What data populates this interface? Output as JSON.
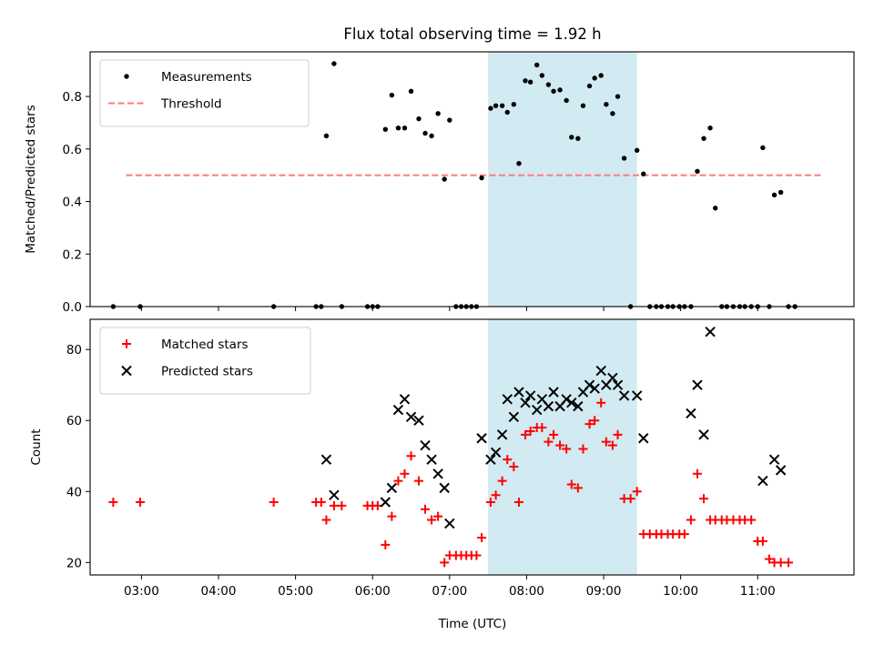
{
  "chart_data": {
    "title": "Flux total observing time = 1.92 h",
    "xlabel": "Time (UTC)",
    "xlim": [
      "02:20",
      "12:15"
    ],
    "x_ticks": [
      "03:00",
      "04:00",
      "05:00",
      "06:00",
      "07:00",
      "08:00",
      "09:00",
      "10:00",
      "11:00"
    ],
    "highlight_span": {
      "from": "07:30",
      "to": "09:26",
      "color": "#add8e6"
    },
    "panels": [
      {
        "type": "scatter",
        "ylabel": "Matched/Predicted stars",
        "ylim": [
          0,
          0.97
        ],
        "y_ticks": [
          "0.0",
          "0.2",
          "0.4",
          "0.6",
          "0.8"
        ],
        "y_tick_values": [
          0,
          0.2,
          0.4,
          0.6,
          0.8
        ],
        "legend_position": "top-left",
        "threshold": {
          "name": "Threshold",
          "value": 0.5,
          "x_from": "02:48",
          "x_to": "11:50",
          "color": "#ff7b7b"
        },
        "series": [
          {
            "name": "Measurements",
            "marker": "dot",
            "color": "#000000",
            "points": [
              [
                "02:38",
                0.0
              ],
              [
                "02:59",
                0.0
              ],
              [
                "04:43",
                0.0
              ],
              [
                "05:16",
                0.0
              ],
              [
                "05:20",
                0.0
              ],
              [
                "05:24",
                0.65
              ],
              [
                "05:30",
                0.925
              ],
              [
                "05:36",
                0.0
              ],
              [
                "05:56",
                0.0
              ],
              [
                "06:00",
                0.0
              ],
              [
                "06:04",
                0.0
              ],
              [
                "06:10",
                0.675
              ],
              [
                "06:15",
                0.805
              ],
              [
                "06:20",
                0.68
              ],
              [
                "06:25",
                0.68
              ],
              [
                "06:30",
                0.82
              ],
              [
                "06:36",
                0.715
              ],
              [
                "06:41",
                0.66
              ],
              [
                "06:46",
                0.65
              ],
              [
                "06:51",
                0.735
              ],
              [
                "06:56",
                0.485
              ],
              [
                "07:00",
                0.71
              ],
              [
                "07:05",
                0.0
              ],
              [
                "07:09",
                0.0
              ],
              [
                "07:13",
                0.0
              ],
              [
                "07:17",
                0.0
              ],
              [
                "07:21",
                0.0
              ],
              [
                "07:25",
                0.49
              ],
              [
                "07:32",
                0.755
              ],
              [
                "07:36",
                0.765
              ],
              [
                "07:41",
                0.765
              ],
              [
                "07:45",
                0.74
              ],
              [
                "07:50",
                0.77
              ],
              [
                "07:54",
                0.545
              ],
              [
                "07:59",
                0.86
              ],
              [
                "08:03",
                0.855
              ],
              [
                "08:08",
                0.92
              ],
              [
                "08:12",
                0.88
              ],
              [
                "08:17",
                0.845
              ],
              [
                "08:21",
                0.82
              ],
              [
                "08:26",
                0.825
              ],
              [
                "08:31",
                0.785
              ],
              [
                "08:35",
                0.645
              ],
              [
                "08:40",
                0.64
              ],
              [
                "08:44",
                0.765
              ],
              [
                "08:49",
                0.84
              ],
              [
                "08:53",
                0.87
              ],
              [
                "08:58",
                0.88
              ],
              [
                "09:02",
                0.77
              ],
              [
                "09:07",
                0.735
              ],
              [
                "09:11",
                0.8
              ],
              [
                "09:16",
                0.565
              ],
              [
                "09:21",
                0.0
              ],
              [
                "09:26",
                0.595
              ],
              [
                "09:31",
                0.505
              ],
              [
                "09:36",
                0.0
              ],
              [
                "09:41",
                0.0
              ],
              [
                "09:45",
                0.0
              ],
              [
                "09:50",
                0.0
              ],
              [
                "09:54",
                0.0
              ],
              [
                "09:59",
                0.0
              ],
              [
                "10:03",
                0.0
              ],
              [
                "10:08",
                0.0
              ],
              [
                "10:13",
                0.515
              ],
              [
                "10:18",
                0.64
              ],
              [
                "10:23",
                0.68
              ],
              [
                "10:27",
                0.375
              ],
              [
                "10:32",
                0.0
              ],
              [
                "10:36",
                0.0
              ],
              [
                "10:41",
                0.0
              ],
              [
                "10:46",
                0.0
              ],
              [
                "10:50",
                0.0
              ],
              [
                "10:55",
                0.0
              ],
              [
                "11:00",
                0.0
              ],
              [
                "11:04",
                0.605
              ],
              [
                "11:09",
                0.0
              ],
              [
                "11:13",
                0.425
              ],
              [
                "11:18",
                0.435
              ],
              [
                "11:24",
                0.0
              ],
              [
                "11:29",
                0.0
              ]
            ]
          }
        ]
      },
      {
        "type": "scatter",
        "ylabel": "Count",
        "ylim": [
          16.5,
          88.5
        ],
        "y_ticks": [
          "20",
          "40",
          "60",
          "80"
        ],
        "y_tick_values": [
          20,
          40,
          60,
          80
        ],
        "legend_position": "top-left",
        "series": [
          {
            "name": "Matched stars",
            "marker": "plus",
            "color": "#ff0000",
            "points": [
              [
                "02:38",
                37
              ],
              [
                "02:59",
                37
              ],
              [
                "04:43",
                37
              ],
              [
                "05:16",
                37
              ],
              [
                "05:20",
                37
              ],
              [
                "05:24",
                32
              ],
              [
                "05:30",
                36
              ],
              [
                "05:36",
                36
              ],
              [
                "05:56",
                36
              ],
              [
                "06:00",
                36
              ],
              [
                "06:04",
                36
              ],
              [
                "06:10",
                25
              ],
              [
                "06:15",
                33
              ],
              [
                "06:20",
                43
              ],
              [
                "06:25",
                45
              ],
              [
                "06:30",
                50
              ],
              [
                "06:36",
                43
              ],
              [
                "06:41",
                35
              ],
              [
                "06:46",
                32
              ],
              [
                "06:51",
                33
              ],
              [
                "06:56",
                20
              ],
              [
                "07:00",
                22
              ],
              [
                "07:05",
                22
              ],
              [
                "07:09",
                22
              ],
              [
                "07:13",
                22
              ],
              [
                "07:17",
                22
              ],
              [
                "07:21",
                22
              ],
              [
                "07:25",
                27
              ],
              [
                "07:32",
                37
              ],
              [
                "07:36",
                39
              ],
              [
                "07:41",
                43
              ],
              [
                "07:45",
                49
              ],
              [
                "07:50",
                47
              ],
              [
                "07:54",
                37
              ],
              [
                "07:59",
                56
              ],
              [
                "08:03",
                57
              ],
              [
                "08:08",
                58
              ],
              [
                "08:12",
                58
              ],
              [
                "08:17",
                54
              ],
              [
                "08:21",
                56
              ],
              [
                "08:26",
                53
              ],
              [
                "08:31",
                52
              ],
              [
                "08:35",
                42
              ],
              [
                "08:40",
                41
              ],
              [
                "08:44",
                52
              ],
              [
                "08:49",
                59
              ],
              [
                "08:53",
                60
              ],
              [
                "08:58",
                65
              ],
              [
                "09:02",
                54
              ],
              [
                "09:07",
                53
              ],
              [
                "09:11",
                56
              ],
              [
                "09:16",
                38
              ],
              [
                "09:21",
                38
              ],
              [
                "09:26",
                40
              ],
              [
                "09:31",
                28
              ],
              [
                "09:36",
                28
              ],
              [
                "09:41",
                28
              ],
              [
                "09:45",
                28
              ],
              [
                "09:50",
                28
              ],
              [
                "09:54",
                28
              ],
              [
                "09:59",
                28
              ],
              [
                "10:03",
                28
              ],
              [
                "10:08",
                32
              ],
              [
                "10:13",
                45
              ],
              [
                "10:18",
                38
              ],
              [
                "10:23",
                32
              ],
              [
                "10:27",
                32
              ],
              [
                "10:32",
                32
              ],
              [
                "10:36",
                32
              ],
              [
                "10:41",
                32
              ],
              [
                "10:46",
                32
              ],
              [
                "10:50",
                32
              ],
              [
                "10:55",
                32
              ],
              [
                "11:00",
                26
              ],
              [
                "11:04",
                26
              ],
              [
                "11:09",
                21
              ],
              [
                "11:13",
                20
              ],
              [
                "11:18",
                20
              ],
              [
                "11:24",
                20
              ]
            ]
          },
          {
            "name": "Predicted stars",
            "marker": "x",
            "color": "#000000",
            "points": [
              [
                "05:24",
                49
              ],
              [
                "05:30",
                39
              ],
              [
                "06:10",
                37
              ],
              [
                "06:15",
                41
              ],
              [
                "06:20",
                63
              ],
              [
                "06:25",
                66
              ],
              [
                "06:30",
                61
              ],
              [
                "06:36",
                60
              ],
              [
                "06:41",
                53
              ],
              [
                "06:46",
                49
              ],
              [
                "06:51",
                45
              ],
              [
                "06:56",
                41
              ],
              [
                "07:00",
                31
              ],
              [
                "07:25",
                55
              ],
              [
                "07:32",
                49
              ],
              [
                "07:36",
                51
              ],
              [
                "07:41",
                56
              ],
              [
                "07:45",
                66
              ],
              [
                "07:50",
                61
              ],
              [
                "07:54",
                68
              ],
              [
                "07:59",
                65
              ],
              [
                "08:03",
                67
              ],
              [
                "08:08",
                63
              ],
              [
                "08:12",
                66
              ],
              [
                "08:17",
                64
              ],
              [
                "08:21",
                68
              ],
              [
                "08:26",
                64
              ],
              [
                "08:31",
                66
              ],
              [
                "08:35",
                65
              ],
              [
                "08:40",
                64
              ],
              [
                "08:44",
                68
              ],
              [
                "08:49",
                70
              ],
              [
                "08:53",
                69
              ],
              [
                "08:58",
                74
              ],
              [
                "09:02",
                70
              ],
              [
                "09:07",
                72
              ],
              [
                "09:11",
                70
              ],
              [
                "09:16",
                67
              ],
              [
                "09:26",
                67
              ],
              [
                "09:31",
                55
              ],
              [
                "10:08",
                62
              ],
              [
                "10:13",
                70
              ],
              [
                "10:18",
                56
              ],
              [
                "10:23",
                85
              ],
              [
                "11:04",
                43
              ],
              [
                "11:13",
                49
              ],
              [
                "11:18",
                46
              ]
            ]
          }
        ]
      }
    ]
  }
}
